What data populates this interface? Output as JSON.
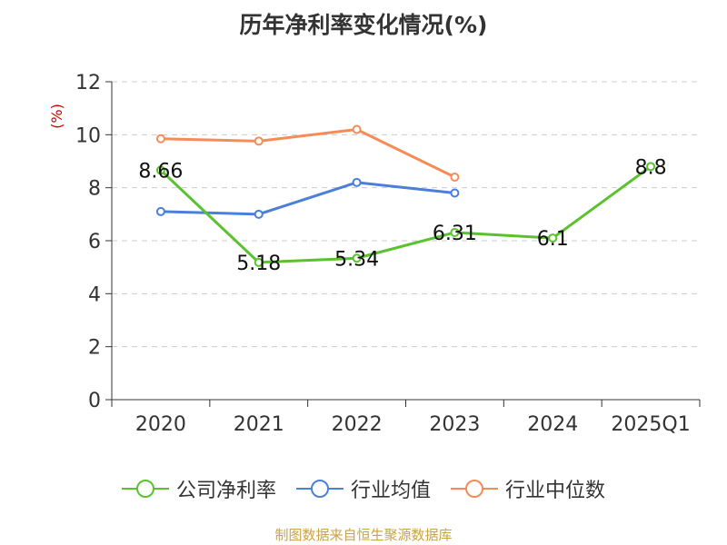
{
  "chart_data": {
    "type": "line",
    "title": "历年净利率变化情况(%)",
    "ylabel": "(%)",
    "xlabel": "",
    "categories": [
      "2020",
      "2021",
      "2022",
      "2023",
      "2024",
      "2025Q1"
    ],
    "ylim": [
      0,
      12
    ],
    "yticks": [
      0,
      2,
      4,
      6,
      8,
      10,
      12
    ],
    "grid": true,
    "legend_position": "bottom",
    "series": [
      {
        "name": "公司净利率",
        "color": "#5ac12f",
        "values": [
          8.66,
          5.18,
          5.34,
          6.31,
          6.1,
          8.8
        ],
        "labels": [
          "8.66",
          "5.18",
          "5.34",
          "6.31",
          "6.1",
          "8.8"
        ]
      },
      {
        "name": "行业均值",
        "color": "#4c7fd8",
        "values": [
          7.1,
          7.0,
          8.2,
          7.8,
          null,
          null
        ]
      },
      {
        "name": "行业中位数",
        "color": "#f58c58",
        "values": [
          9.85,
          9.76,
          10.2,
          8.4,
          null,
          null
        ]
      }
    ]
  },
  "source": "制图数据来自恒生聚源数据库"
}
